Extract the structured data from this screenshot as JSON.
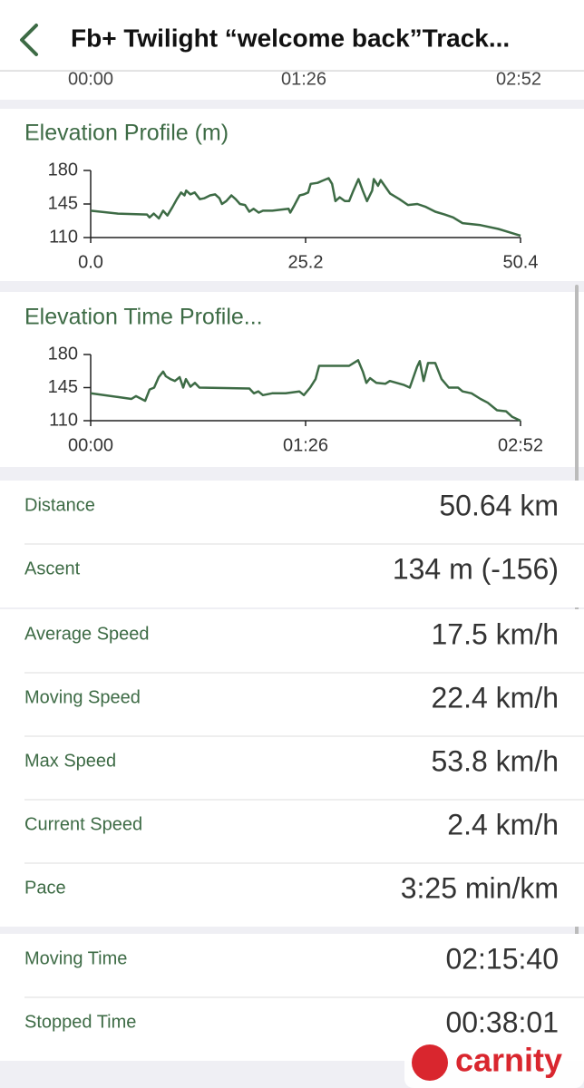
{
  "header": {
    "title": "Fb+ Twilight “welcome back”Track..."
  },
  "top_axis": {
    "labels": [
      "00:00",
      "01:26",
      "02:52"
    ]
  },
  "chart_data": [
    {
      "type": "line",
      "title": "Elevation Profile (m)",
      "x": [
        0.0,
        3.2,
        6.6,
        6.9,
        7.4,
        8.0,
        8.5,
        9.0,
        9.6,
        10.1,
        10.6,
        11.0,
        11.2,
        11.7,
        12.2,
        12.8,
        13.3,
        14.0,
        14.6,
        15.1,
        15.4,
        15.9,
        16.5,
        17.0,
        17.5,
        18.1,
        18.6,
        19.1,
        19.7,
        20.2,
        21.3,
        22.3,
        23.2,
        23.4,
        23.9,
        24.5,
        25.0,
        25.5,
        25.8,
        26.6,
        27.1,
        27.9,
        28.3,
        28.7,
        29.2,
        29.8,
        30.3,
        30.8,
        31.4,
        31.9,
        32.4,
        33.0,
        33.2,
        33.7,
        34.0,
        35.1,
        36.2,
        37.2,
        38.3,
        39.3,
        40.4,
        41.5,
        42.5,
        43.6,
        45.7,
        47.8,
        50.4
      ],
      "series": [
        {
          "color": "#3d6b45",
          "values": [
            138,
            135,
            134,
            131,
            135,
            130,
            138,
            133,
            142,
            150,
            157,
            154,
            159,
            155,
            157,
            150,
            151,
            154,
            155,
            151,
            145,
            148,
            154,
            150,
            145,
            144,
            137,
            140,
            136,
            138,
            138,
            139,
            140,
            136,
            144,
            154,
            155,
            157,
            166,
            167,
            169,
            172,
            166,
            148,
            152,
            148,
            148,
            159,
            171,
            159,
            148,
            159,
            171,
            164,
            170,
            156,
            150,
            144,
            145,
            142,
            137,
            134,
            131,
            125,
            123,
            119,
            112
          ]
        }
      ],
      "xlim": [
        0,
        50.4
      ],
      "xticks": [
        {
          "value": 0,
          "label": "0.0"
        },
        25.2,
        50.4
      ],
      "ylim": [
        110,
        180
      ],
      "yticks": [
        110,
        145,
        180
      ]
    },
    {
      "type": "line",
      "title": "Elevation Time Profile...",
      "x": [
        0,
        10.9,
        16.3,
        18.1,
        21.8,
        23.6,
        25.4,
        27.2,
        29.0,
        30.1,
        31.9,
        33.7,
        35.6,
        37.0,
        38.1,
        39.9,
        41.7,
        43.5,
        63.5,
        65.3,
        67.1,
        68.9,
        72.6,
        78.0,
        83.5,
        85.3,
        87.8,
        90.0,
        91.4,
        103.4,
        105.2,
        107.0,
        108.9,
        110.3,
        111.8,
        114.3,
        117.9,
        119.7,
        125.2,
        127.7,
        130.6,
        131.7,
        133.2,
        135.0,
        137.9,
        140.4,
        143.3,
        147.0,
        148.8,
        152.4,
        156.0,
        158.9,
        162.6,
        166.2,
        168.7,
        172
      ],
      "series": [
        {
          "color": "#3d6b45",
          "values": [
            139,
            135,
            133,
            136,
            131,
            143,
            145,
            156,
            162,
            157,
            154,
            152,
            156,
            145,
            154,
            146,
            150,
            145,
            144,
            139,
            141,
            137,
            139,
            139,
            141,
            137,
            145,
            154,
            168,
            168,
            171,
            174,
            162,
            150,
            155,
            150,
            149,
            152,
            148,
            145,
            167,
            173,
            152,
            171,
            171,
            154,
            145,
            145,
            141,
            139,
            133,
            129,
            121,
            120,
            114,
            110
          ]
        }
      ],
      "xlim": [
        0,
        172
      ],
      "xticks": [
        {
          "value": 0,
          "label": "00:00"
        },
        {
          "value": 86,
          "label": "01:26"
        },
        {
          "value": 172,
          "label": "02:52"
        }
      ],
      "ylim": [
        110,
        180
      ],
      "yticks": [
        110,
        145,
        180
      ]
    }
  ],
  "stats": [
    [
      {
        "label": "Distance",
        "value": "50.64 km"
      },
      {
        "label": "Ascent",
        "value": "134 m (-156)"
      }
    ],
    [
      {
        "label": "Average Speed",
        "value": "17.5 km/h"
      },
      {
        "label": "Moving Speed",
        "value": "22.4 km/h"
      },
      {
        "label": "Max Speed",
        "value": "53.8 km/h"
      },
      {
        "label": "Current Speed",
        "value": "2.4 km/h"
      },
      {
        "label": "Pace",
        "value": "3:25 min/km"
      }
    ],
    [
      {
        "label": "Moving Time",
        "value": "02:15:40"
      },
      {
        "label": "Stopped Time",
        "value": "00:38:01"
      }
    ]
  ],
  "watermark": "carnity"
}
